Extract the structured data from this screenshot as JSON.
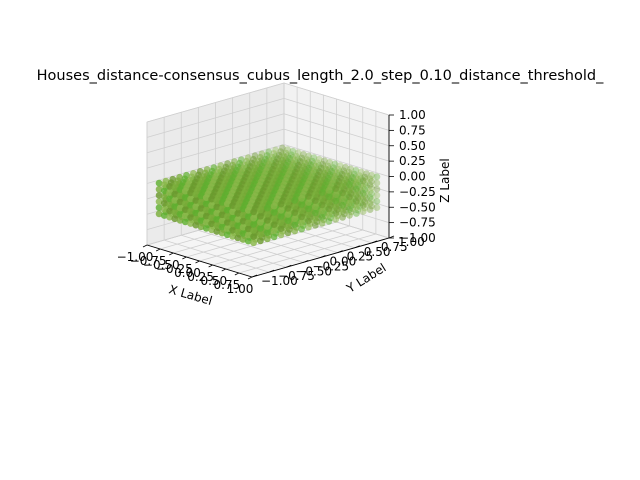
{
  "chart_data": {
    "type": "scatter",
    "projection": "3d",
    "title": "Houses_distance-consensus_cubus_length_2.0_step_0.10_distance_threshold_",
    "xlabel": "X Label",
    "ylabel": "Y Label",
    "zlabel": "Z Label",
    "xlim": [
      -1.0,
      1.0
    ],
    "ylim": [
      -1.0,
      1.0
    ],
    "zlim": [
      -1.0,
      1.0
    ],
    "xticks": [
      "−1.00",
      "−0.75",
      "−0.50",
      "−0.25",
      "0.00",
      "0.25",
      "0.50",
      "0.75",
      "1.00"
    ],
    "yticks": [
      "−1.00",
      "−0.75",
      "−0.50",
      "−0.25",
      "0.00",
      "0.25",
      "0.50",
      "0.75",
      "1.00"
    ],
    "zticks": [
      "−1.00",
      "−0.75",
      "−0.50",
      "−0.25",
      "0.00",
      "0.25",
      "0.50",
      "0.75",
      "1.00"
    ],
    "grid": true,
    "points": {
      "x_range": [
        -0.9,
        0.9
      ],
      "y_range": [
        -0.9,
        0.9
      ],
      "z_range": [
        -0.5,
        0.0
      ],
      "step": 0.1,
      "colors": [
        "#6b9a2e",
        "#7aad3a",
        "#5fb030",
        "#8ab84a"
      ]
    }
  }
}
